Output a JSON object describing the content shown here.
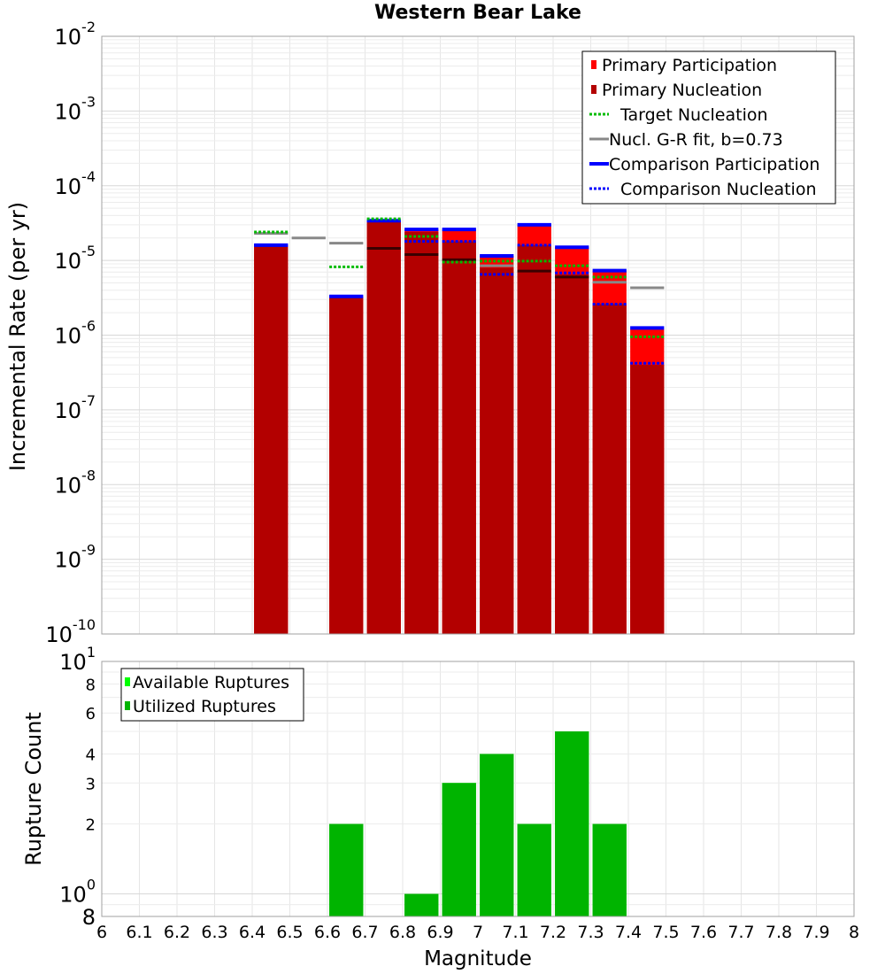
{
  "chart_data": [
    {
      "type": "bar",
      "title": "Western Bear Lake",
      "xlabel": "",
      "ylabel": "Incremental Rate (per yr)",
      "y_scale": "log",
      "xlim": [
        6,
        8
      ],
      "ylim": [
        1e-10,
        0.01
      ],
      "bin_width": 0.1,
      "y_tick_labels": [
        {
          "value": 1e-10,
          "base": "10",
          "exp": "-10"
        },
        {
          "value": 1e-09,
          "base": "10",
          "exp": "-9"
        },
        {
          "value": 1e-08,
          "base": "10",
          "exp": "-8"
        },
        {
          "value": 1e-07,
          "base": "10",
          "exp": "-7"
        },
        {
          "value": 1e-06,
          "base": "10",
          "exp": "-6"
        },
        {
          "value": 1e-05,
          "base": "10",
          "exp": "-5"
        },
        {
          "value": 0.0001,
          "base": "10",
          "exp": "-4"
        },
        {
          "value": 0.001,
          "base": "10",
          "exp": "-3"
        },
        {
          "value": 0.01,
          "base": "10",
          "exp": "-2"
        }
      ],
      "grid": true,
      "legend_position": "top-right",
      "series": [
        {
          "name": "Primary Participation",
          "color": "#ff0000",
          "style": "bar",
          "x": [
            6.45,
            6.65,
            6.75,
            6.85,
            6.95,
            7.05,
            7.15,
            7.25,
            7.35,
            7.45
          ],
          "values": [
            1.6e-05,
            3.3e-06,
            3.4e-05,
            2.6e-05,
            2.6e-05,
            1.15e-05,
            3e-05,
            1.5e-05,
            7.3e-06,
            1.2e-06
          ]
        },
        {
          "name": "Primary Nucleation",
          "color": "#b30000",
          "style": "bar",
          "x": [
            6.45,
            6.65,
            6.75,
            6.85,
            6.95,
            7.05,
            7.15,
            7.25,
            7.35,
            7.45
          ],
          "values": [
            1.6e-05,
            3.2e-06,
            3.3e-05,
            2.4e-05,
            1.8e-05,
            8e-06,
            1.6e-05,
            6.5e-06,
            2.6e-06,
            4e-07
          ]
        },
        {
          "name": "Target Nucleation",
          "color": "#00bb00",
          "style": "dotted",
          "x": [
            6.45,
            6.65,
            6.75,
            6.85,
            6.95,
            7.05,
            7.15,
            7.25,
            7.35,
            7.45
          ],
          "values": [
            2.4e-05,
            8.2e-06,
            3.6e-05,
            2.1e-05,
            9.5e-06,
            9.8e-06,
            9.8e-06,
            8.5e-06,
            6e-06,
            9.5e-07
          ]
        },
        {
          "name": "Nucl. G-R fit, b=0.73",
          "color": "#888888",
          "style": "solid",
          "x": [
            6.45,
            6.55,
            6.65,
            6.75,
            6.85,
            6.95,
            7.05,
            7.15,
            7.25,
            7.35,
            7.45
          ],
          "values": [
            2.3e-05,
            2e-05,
            1.7e-05,
            1.45e-05,
            1.2e-05,
            1.02e-05,
            8.5e-06,
            7.2e-06,
            6e-06,
            5.1e-06,
            4.3e-06
          ]
        },
        {
          "name": "Comparison Participation",
          "color": "#0000ff",
          "style": "solid",
          "x": [
            6.45,
            6.65,
            6.75,
            6.85,
            6.95,
            7.05,
            7.15,
            7.25,
            7.35,
            7.45
          ],
          "values": [
            1.6e-05,
            3.3e-06,
            3.4e-05,
            2.6e-05,
            2.6e-05,
            1.15e-05,
            3e-05,
            1.5e-05,
            7.3e-06,
            1.25e-06
          ]
        },
        {
          "name": "Comparison Nucleation",
          "color": "#0000ff",
          "style": "dotted",
          "x": [
            6.45,
            6.65,
            6.75,
            6.85,
            6.95,
            7.05,
            7.15,
            7.25,
            7.35,
            7.45
          ],
          "values": [
            1.6e-05,
            3.3e-06,
            3.4e-05,
            1.8e-05,
            1.8e-05,
            6.5e-06,
            1.6e-05,
            6.8e-06,
            2.6e-06,
            4.2e-07
          ]
        }
      ]
    },
    {
      "type": "bar",
      "title": "",
      "xlabel": "Magnitude",
      "ylabel": "Rupture Count",
      "y_scale": "log",
      "xlim": [
        6,
        8
      ],
      "ylim": [
        0.8,
        10
      ],
      "bin_width": 0.1,
      "x_tick_labels": [
        "6",
        "6.1",
        "6.2",
        "6.3",
        "6.4",
        "6.5",
        "6.6",
        "6.7",
        "6.8",
        "6.9",
        "7",
        "7.1",
        "7.2",
        "7.3",
        "7.4",
        "7.5",
        "7.6",
        "7.7",
        "7.8",
        "7.9",
        "8"
      ],
      "y_tick_labels": [
        {
          "value": 10,
          "base": "10",
          "exp": "1"
        },
        {
          "value": 8,
          "base": "8",
          "exp": ""
        },
        {
          "value": 6,
          "base": "6",
          "exp": ""
        },
        {
          "value": 4,
          "base": "4",
          "exp": ""
        },
        {
          "value": 3,
          "base": "3",
          "exp": ""
        },
        {
          "value": 2,
          "base": "2",
          "exp": ""
        },
        {
          "value": 1,
          "base": "10",
          "exp": "0"
        },
        {
          "value": 0.8,
          "base": "8",
          "exp": ""
        }
      ],
      "grid": true,
      "legend_position": "top-left",
      "series": [
        {
          "name": "Available Ruptures",
          "color": "#00ff00",
          "style": "bar",
          "x": [
            6.65,
            6.85,
            6.95,
            7.05,
            7.15,
            7.25,
            7.35
          ],
          "values": [
            2,
            1,
            3,
            4,
            2,
            5,
            2
          ]
        },
        {
          "name": "Utilized Ruptures",
          "color": "#00b400",
          "style": "bar",
          "x": [
            6.65,
            6.85,
            6.95,
            7.05,
            7.15,
            7.25,
            7.35
          ],
          "values": [
            2,
            1,
            3,
            4,
            2,
            5,
            2
          ]
        }
      ]
    }
  ]
}
